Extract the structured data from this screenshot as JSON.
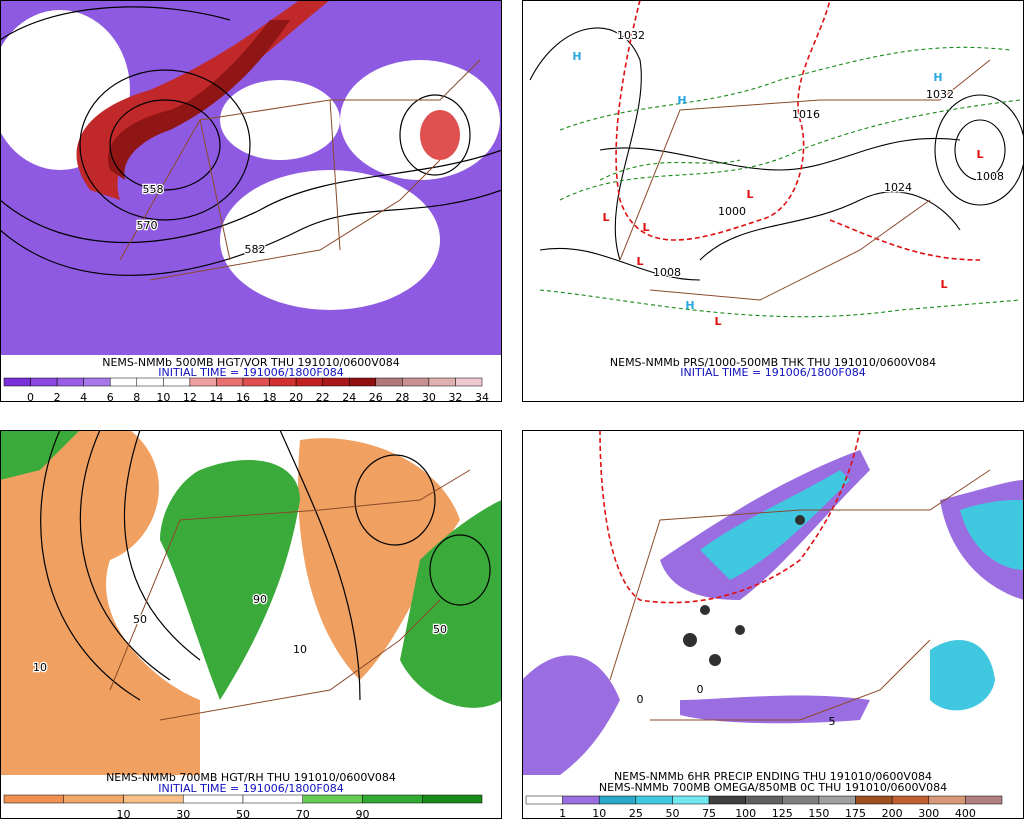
{
  "panels": [
    {
      "caption": [
        "NEMS-NMMb 500MB HGT/VOR THU 191010/0600V084",
        "INITIAL TIME = 191006/1800F084"
      ],
      "map_labels": [
        "558",
        "570",
        "582"
      ],
      "colorbar": {
        "labels": [
          "0",
          "2",
          "4",
          "6",
          "8",
          "10",
          "12",
          "14",
          "16",
          "18",
          "20",
          "22",
          "24",
          "26",
          "28",
          "30",
          "32",
          "34"
        ],
        "colors": [
          "#7b2fd8",
          "#8a48e0",
          "#9a5fe6",
          "#a878ea",
          "#ffffff",
          "#ffffff",
          "#ffffff",
          "#f0a0a0",
          "#e87070",
          "#e05050",
          "#d03030",
          "#c02020",
          "#a81818",
          "#901010",
          "#b07878",
          "#c89090",
          "#e0b0b0",
          "#f0c8d0"
        ]
      }
    },
    {
      "caption": [
        "NEMS-NMMb PRS/1000-500MB THK THU 191010/0600V084",
        "INITIAL TIME = 191006/1800F084"
      ],
      "map_labels": [
        "H",
        "H",
        "H",
        "H",
        "L",
        "L",
        "L",
        "L",
        "L",
        "L",
        "L",
        "1032",
        "1008",
        "1000",
        "1032",
        "1008",
        "1024",
        "1016"
      ]
    },
    {
      "caption": [
        "NEMS-NMMb 700MB HGT/RH THU 191010/0600V084",
        "INITIAL TIME = 191006/1800F084"
      ],
      "map_labels": [
        "10",
        "50",
        "90",
        "50",
        "10"
      ],
      "colorbar": {
        "labels": [
          "10",
          "30",
          "50",
          "70",
          "90"
        ],
        "colors": [
          "#f09050",
          "#f0a868",
          "#f8c088",
          "#ffffff",
          "#ffffff",
          "#66cc55",
          "#33aa33",
          "#1a8a1a"
        ]
      }
    },
    {
      "caption": [
        "NEMS-NMMb 6HR PRECIP ENDING THU 191010/0600V084",
        "NEMS-NMMb 700MB OMEGA/850MB 0C THU 191010/0600V084"
      ],
      "map_labels": [
        "5",
        "0",
        "0"
      ],
      "colorbar": {
        "labels": [
          "1",
          "10",
          "25",
          "50",
          "75",
          "100",
          "125",
          "150",
          "175",
          "200",
          "300",
          "400"
        ],
        "colors": [
          "#ffffff",
          "#9a6ee0",
          "#2aa8c8",
          "#40c8e0",
          "#70e8f0",
          "#404040",
          "#606060",
          "#808080",
          "#a0a0a0",
          "#a05020",
          "#c06030",
          "#d89878",
          "#b08080"
        ]
      }
    }
  ]
}
